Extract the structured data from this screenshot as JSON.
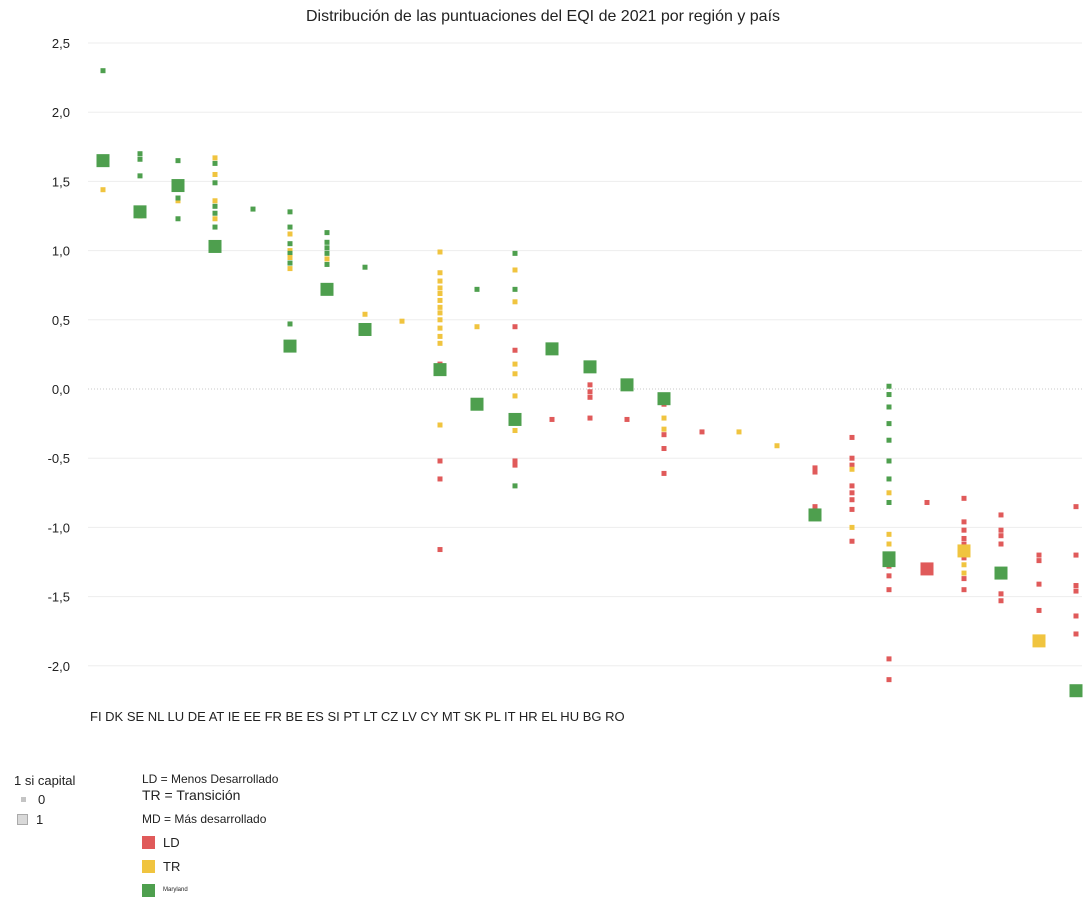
{
  "chart_data": {
    "type": "scatter",
    "title": "Distribución de las puntuaciones del EQI de 2021 por región y país",
    "xlabel": "",
    "ylabel": "",
    "ylim": [
      -2.4,
      2.5
    ],
    "yticks": [
      "2,5",
      "2,0",
      "1,5",
      "1,0",
      "0,5",
      "0,0",
      "-0,5",
      "-1,0",
      "-1,5",
      "-2,0"
    ],
    "ytick_values": [
      2.5,
      2.0,
      1.5,
      1.0,
      0.5,
      0.0,
      -0.5,
      -1.0,
      -1.5,
      -2.0
    ],
    "categories": [
      "FI",
      "DK",
      "SE",
      "NL",
      "LU",
      "DE",
      "AT",
      "IE",
      "EE",
      "FR",
      "BE",
      "ES",
      "SI",
      "PT",
      "LT",
      "CZ",
      "LV",
      "CY",
      "MT",
      "SK",
      "PL",
      "IT",
      "HR",
      "EL",
      "HU",
      "BG",
      "RO"
    ],
    "categories_label": "FI DK SE NL LU DE AT IE EE FR BE ES SI PT LT CZ LV CY MT SK PL IT HR EL HU BG RO",
    "colors": {
      "LD": "#e05a5a",
      "TR": "#f0c43f",
      "MD": "#4e9f4e"
    },
    "grid": true,
    "series": [
      {
        "name": "LD",
        "values": [
          [
            0,
            -2.1,
            0
          ],
          [
            0,
            -1.95,
            0
          ],
          [
            0,
            -1.45,
            0
          ],
          [
            0,
            -1.35,
            0
          ],
          [
            0,
            -1.28,
            0
          ],
          [
            0,
            -1.2,
            0
          ],
          [
            1,
            -0.85,
            0
          ],
          [
            1,
            -0.6,
            0
          ],
          [
            1,
            -0.57,
            0
          ],
          [
            2,
            -0.35,
            0
          ],
          [
            2,
            -0.5,
            0
          ],
          [
            2,
            -0.55,
            0
          ],
          [
            2,
            -0.7,
            0
          ],
          [
            2,
            -0.75,
            0
          ],
          [
            2,
            -0.8,
            0
          ],
          [
            2,
            -0.87,
            0
          ],
          [
            2,
            -1.1,
            0
          ],
          [
            4,
            -0.82,
            0
          ],
          [
            5,
            -1.3,
            1
          ],
          [
            6,
            -0.79,
            0
          ],
          [
            6,
            -0.96,
            0
          ],
          [
            6,
            -1.02,
            0
          ],
          [
            6,
            -1.08,
            0
          ],
          [
            6,
            -1.12,
            0
          ],
          [
            6,
            -1.18,
            0
          ],
          [
            6,
            -1.22,
            0
          ],
          [
            6,
            -1.37,
            0
          ],
          [
            6,
            -1.45,
            0
          ],
          [
            7,
            -0.91,
            0
          ],
          [
            7,
            -1.02,
            0
          ],
          [
            7,
            -1.06,
            0
          ],
          [
            7,
            -1.12,
            0
          ],
          [
            7,
            -1.48,
            0
          ],
          [
            7,
            -1.53,
            0
          ],
          [
            8,
            -1.2,
            0
          ],
          [
            8,
            -1.24,
            0
          ],
          [
            8,
            -1.41,
            0
          ],
          [
            8,
            -1.6,
            0
          ],
          [
            9,
            -0.85,
            0
          ],
          [
            9,
            -1.2,
            0
          ],
          [
            9,
            -1.42,
            0
          ],
          [
            9,
            -1.46,
            0
          ],
          [
            9,
            -1.64,
            0
          ],
          [
            9,
            -1.77,
            0
          ]
        ]
      },
      {
        "name": "TR",
        "values": [
          [
            2,
            -0.58,
            0
          ],
          [
            2,
            -1.0,
            0
          ],
          [
            3,
            -0.75,
            0
          ],
          [
            3,
            -1.05,
            0
          ],
          [
            3,
            -1.12,
            0
          ],
          [
            3,
            -1.23,
            0
          ],
          [
            6,
            -1.17,
            1
          ],
          [
            6,
            -1.27,
            0
          ],
          [
            6,
            -1.33,
            0
          ],
          [
            8,
            -1.82,
            1
          ]
        ]
      },
      {
        "name": "MD",
        "values": [
          [
            0,
            -1.22,
            1
          ],
          [
            1,
            -0.91,
            1
          ],
          [
            3,
            0.02,
            0
          ],
          [
            3,
            -0.04,
            0
          ],
          [
            3,
            -0.13,
            0
          ],
          [
            3,
            -0.25,
            0
          ],
          [
            3,
            -0.37,
            0
          ],
          [
            3,
            -0.52,
            0
          ],
          [
            3,
            -0.65,
            0
          ],
          [
            3,
            -0.82,
            0
          ],
          [
            4,
            -1.24,
            1
          ],
          [
            8,
            -1.33,
            1
          ],
          [
            10,
            -2.18,
            1
          ]
        ]
      }
    ],
    "x_positions_note": "Points are placed in data units along the category axis; see script positions.",
    "capital_legend": {
      "title": "1 si capital",
      "items": [
        "0",
        "1"
      ]
    },
    "dev_legend": {
      "ld_def": "LD = Menos Desarrollado",
      "tr_def": "TR = Transición",
      "md_def": "MD = Más desarrollado",
      "items": [
        "LD",
        "TR",
        "Maryland"
      ]
    }
  }
}
